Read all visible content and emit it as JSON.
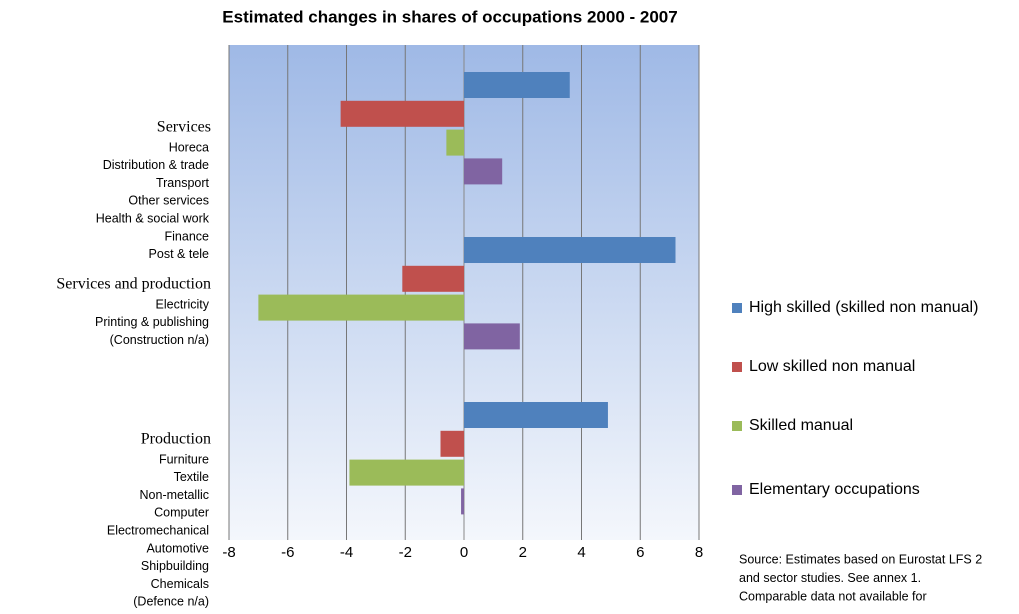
{
  "chart_data": {
    "type": "bar",
    "orientation": "horizontal",
    "title": "Estimated changes in shares of occupations 2000 - 2007",
    "categories": [
      "Services",
      "Services and production",
      "Production"
    ],
    "category_details": [
      [
        "Horeca",
        "Distribution & trade",
        "Transport",
        "Other services",
        "Health & social work",
        "Finance",
        "Post & tele"
      ],
      [
        "Electricity",
        "Printing & publishing",
        "(Construction n/a)"
      ],
      [
        "Furniture",
        "Textile",
        "Non-metallic",
        "Computer",
        "Electromechanical",
        "Automotive",
        "Shipbuilding",
        "Chemicals",
        "(Defence n/a)"
      ]
    ],
    "series": [
      {
        "name": "High skilled (skilled non manual)",
        "color": "#4f81bd",
        "values": [
          3.6,
          7.2,
          4.9
        ]
      },
      {
        "name": "Low skilled non manual",
        "color": "#c0504d",
        "values": [
          -4.2,
          -2.1,
          -0.8
        ]
      },
      {
        "name": "Skilled manual",
        "color": "#9bbb59",
        "values": [
          -0.6,
          -7.0,
          -3.9
        ]
      },
      {
        "name": "Elementary occupations",
        "color": "#8064a2",
        "values": [
          1.3,
          1.9,
          -0.1
        ]
      }
    ],
    "xlim": [
      -8,
      8
    ],
    "xticks": [
      -8,
      -6,
      -4,
      -2,
      0,
      2,
      4,
      6,
      8
    ],
    "grid": true,
    "legend": "right",
    "annotations": [
      "Source: Estimates based on Eurostat LFS 2",
      "and sector studies. See annex 1.",
      "Comparable data not available for"
    ]
  }
}
